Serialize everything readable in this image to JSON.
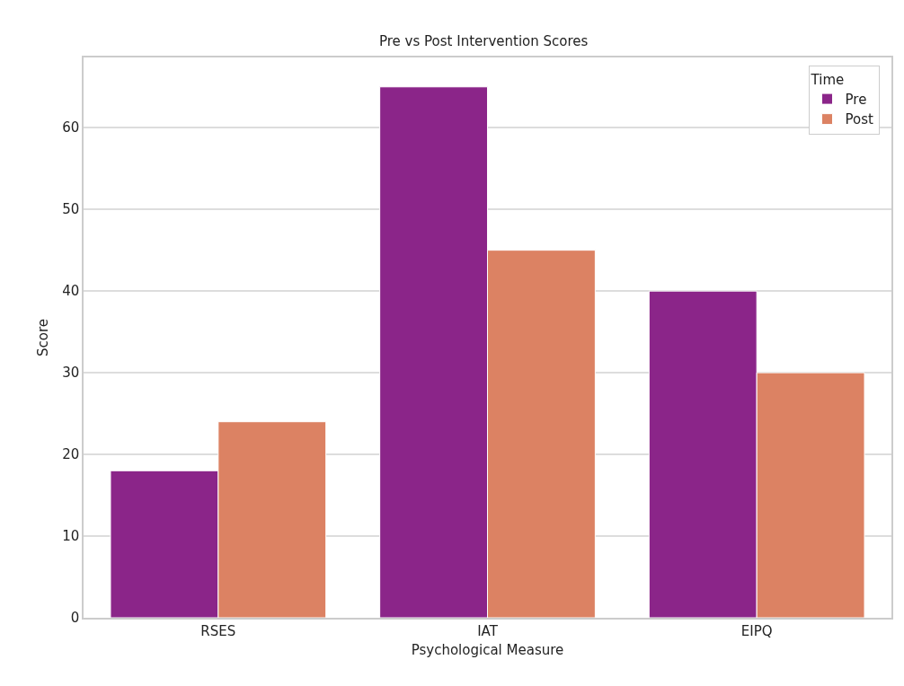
{
  "chart_data": {
    "type": "bar",
    "title": "Pre vs Post Intervention Scores",
    "xlabel": "Psychological Measure",
    "ylabel": "Score",
    "legend_title": "Time",
    "categories": [
      "RSES",
      "IAT",
      "EIPQ"
    ],
    "series": [
      {
        "name": "Pre",
        "color": "#8b2589",
        "values": [
          18,
          65,
          40
        ]
      },
      {
        "name": "Post",
        "color": "#dc8263",
        "values": [
          24,
          45,
          30
        ]
      }
    ],
    "ylim": [
      0,
      68.6
    ],
    "yticks": [
      0,
      10,
      20,
      30,
      40,
      50,
      60
    ],
    "grid": "y",
    "legend": "top right"
  }
}
